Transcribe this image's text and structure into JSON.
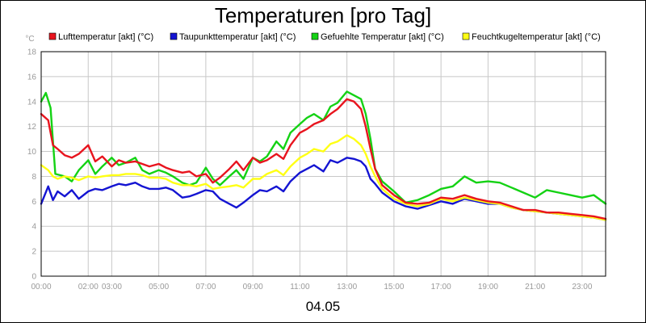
{
  "chart_data": {
    "type": "line",
    "title": "Temperaturen [pro Tag]",
    "ylabel": "°C",
    "xlabel": "04.05",
    "ylim": [
      0,
      18
    ],
    "xlim": [
      0,
      24
    ],
    "grid": true,
    "legend_position": "top",
    "y_ticks": [
      "0",
      "2",
      "4",
      "6",
      "8",
      "10",
      "12",
      "14",
      "16",
      "18"
    ],
    "x_ticks": [
      {
        "x": 0,
        "label": "00:00"
      },
      {
        "x": 2,
        "label": "02:00"
      },
      {
        "x": 3,
        "label": "03:00"
      },
      {
        "x": 5,
        "label": "05:00"
      },
      {
        "x": 7,
        "label": "07:00"
      },
      {
        "x": 9,
        "label": "09:00"
      },
      {
        "x": 11,
        "label": "11:00"
      },
      {
        "x": 13,
        "label": "13:00"
      },
      {
        "x": 15,
        "label": "15:00"
      },
      {
        "x": 17,
        "label": "17:00"
      },
      {
        "x": 19,
        "label": "19:00"
      },
      {
        "x": 21,
        "label": "21:00"
      },
      {
        "x": 23,
        "label": "23:00"
      }
    ],
    "series": [
      {
        "name": "Lufttemperatur [akt] (°C)",
        "color": "#e8141e",
        "x": [
          0,
          0.3,
          0.5,
          0.7,
          1.0,
          1.3,
          1.6,
          2.0,
          2.3,
          2.6,
          3.0,
          3.3,
          3.6,
          4.0,
          4.3,
          4.6,
          5.0,
          5.3,
          5.6,
          6.0,
          6.3,
          6.6,
          7.0,
          7.3,
          7.6,
          8.0,
          8.3,
          8.6,
          9.0,
          9.3,
          9.6,
          10.0,
          10.3,
          10.6,
          11.0,
          11.3,
          11.6,
          12.0,
          12.3,
          12.6,
          13.0,
          13.3,
          13.6,
          13.8,
          14.0,
          14.2,
          14.5,
          15.0,
          15.5,
          16.0,
          16.5,
          17.0,
          17.5,
          18.0,
          18.5,
          19.0,
          19.5,
          20.0,
          20.5,
          21.0,
          21.5,
          22.0,
          22.5,
          23.0,
          23.5,
          24.0
        ],
        "y": [
          13.0,
          12.5,
          10.5,
          10.2,
          9.7,
          9.5,
          9.8,
          10.5,
          9.2,
          9.6,
          8.8,
          9.3,
          9.1,
          9.2,
          9.0,
          8.8,
          9.0,
          8.7,
          8.5,
          8.3,
          8.4,
          8.0,
          8.2,
          7.5,
          7.9,
          8.6,
          9.2,
          8.5,
          9.5,
          9.1,
          9.3,
          9.8,
          9.4,
          10.5,
          11.5,
          11.8,
          12.2,
          12.5,
          13.0,
          13.4,
          14.2,
          14.0,
          13.4,
          12.0,
          10.2,
          8.6,
          7.3,
          6.5,
          5.9,
          5.8,
          5.9,
          6.3,
          6.2,
          6.5,
          6.2,
          6.0,
          5.9,
          5.6,
          5.3,
          5.3,
          5.1,
          5.1,
          5.0,
          4.9,
          4.8,
          4.6
        ]
      },
      {
        "name": "Taupunkttemperatur [akt] (°C)",
        "color": "#1414d2",
        "x": [
          0,
          0.3,
          0.5,
          0.7,
          1.0,
          1.3,
          1.6,
          2.0,
          2.3,
          2.6,
          3.0,
          3.3,
          3.6,
          4.0,
          4.3,
          4.6,
          5.0,
          5.3,
          5.6,
          6.0,
          6.3,
          6.6,
          7.0,
          7.3,
          7.6,
          8.0,
          8.3,
          8.6,
          9.0,
          9.3,
          9.6,
          10.0,
          10.3,
          10.6,
          11.0,
          11.3,
          11.6,
          12.0,
          12.3,
          12.6,
          13.0,
          13.3,
          13.6,
          13.8,
          14.0,
          14.2,
          14.5,
          15.0,
          15.5,
          16.0,
          16.5,
          17.0,
          17.5,
          18.0,
          18.5,
          19.0,
          19.5,
          20.0,
          20.5,
          21.0,
          21.5,
          22.0,
          22.5,
          23.0,
          23.5,
          24.0
        ],
        "y": [
          5.8,
          7.2,
          6.1,
          6.8,
          6.4,
          6.9,
          6.2,
          6.8,
          7.0,
          6.9,
          7.2,
          7.4,
          7.3,
          7.5,
          7.2,
          7.0,
          7.0,
          7.1,
          6.9,
          6.3,
          6.4,
          6.6,
          6.9,
          6.8,
          6.2,
          5.8,
          5.5,
          5.9,
          6.5,
          6.9,
          6.8,
          7.2,
          6.8,
          7.6,
          8.3,
          8.6,
          8.9,
          8.4,
          9.3,
          9.1,
          9.5,
          9.4,
          9.2,
          8.8,
          7.8,
          7.4,
          6.7,
          6.0,
          5.6,
          5.4,
          5.7,
          6.0,
          5.8,
          6.2,
          6.0,
          5.8,
          5.8,
          5.5,
          5.3,
          5.2,
          5.1,
          5.0,
          4.9,
          4.8,
          4.7,
          4.5
        ]
      },
      {
        "name": "Gefuehlte Temperatur [akt] (°C)",
        "color": "#14d214",
        "x": [
          0,
          0.2,
          0.4,
          0.6,
          1.0,
          1.3,
          1.6,
          2.0,
          2.3,
          2.6,
          3.0,
          3.3,
          3.6,
          4.0,
          4.3,
          4.6,
          5.0,
          5.3,
          5.6,
          6.0,
          6.3,
          6.6,
          7.0,
          7.3,
          7.6,
          8.0,
          8.3,
          8.6,
          9.0,
          9.3,
          9.6,
          10.0,
          10.3,
          10.6,
          11.0,
          11.3,
          11.6,
          12.0,
          12.3,
          12.6,
          13.0,
          13.3,
          13.6,
          13.8,
          14.0,
          14.2,
          14.5,
          15.0,
          15.5,
          16.0,
          16.5,
          17.0,
          17.5,
          18.0,
          18.5,
          19.0,
          19.5,
          20.0,
          20.5,
          21.0,
          21.5,
          22.0,
          22.5,
          23.0,
          23.5,
          24.0
        ],
        "y": [
          14.0,
          14.7,
          13.5,
          8.2,
          8.0,
          7.6,
          8.5,
          9.3,
          8.2,
          8.8,
          9.5,
          8.9,
          9.1,
          9.5,
          8.5,
          8.2,
          8.5,
          8.3,
          8.0,
          7.5,
          7.3,
          7.5,
          8.7,
          7.8,
          7.3,
          8.0,
          8.5,
          7.8,
          9.5,
          9.2,
          9.6,
          10.8,
          10.2,
          11.5,
          12.2,
          12.7,
          13.0,
          12.5,
          13.6,
          13.9,
          14.8,
          14.5,
          14.2,
          13.0,
          11.0,
          8.6,
          7.6,
          6.8,
          5.9,
          6.1,
          6.5,
          7.0,
          7.2,
          8.0,
          7.5,
          7.6,
          7.5,
          7.1,
          6.7,
          6.3,
          6.9,
          6.7,
          6.5,
          6.3,
          6.5,
          5.8
        ]
      },
      {
        "name": "Feuchtkugeltemperatur [akt] (°C)",
        "color": "#ffff14",
        "x": [
          0,
          0.3,
          0.5,
          0.7,
          1.0,
          1.3,
          1.6,
          2.0,
          2.3,
          2.6,
          3.0,
          3.3,
          3.6,
          4.0,
          4.3,
          4.6,
          5.0,
          5.3,
          5.6,
          6.0,
          6.3,
          6.6,
          7.0,
          7.3,
          7.6,
          8.0,
          8.3,
          8.6,
          9.0,
          9.3,
          9.6,
          10.0,
          10.3,
          10.6,
          11.0,
          11.3,
          11.6,
          12.0,
          12.3,
          12.6,
          13.0,
          13.3,
          13.6,
          13.8,
          14.0,
          14.2,
          14.5,
          15.0,
          15.5,
          16.0,
          16.5,
          17.0,
          17.5,
          18.0,
          18.5,
          19.0,
          19.5,
          20.0,
          20.5,
          21.0,
          21.5,
          22.0,
          22.5,
          23.0,
          23.5,
          24.0
        ],
        "y": [
          8.9,
          8.5,
          8.0,
          7.8,
          8.0,
          7.9,
          7.7,
          8.0,
          7.9,
          8.0,
          8.1,
          8.1,
          8.2,
          8.2,
          8.1,
          7.9,
          7.9,
          7.8,
          7.5,
          7.3,
          7.3,
          7.2,
          7.4,
          7.0,
          7.1,
          7.2,
          7.3,
          7.1,
          7.8,
          7.8,
          8.2,
          8.5,
          8.1,
          8.8,
          9.5,
          9.8,
          10.2,
          10.0,
          10.6,
          10.8,
          11.3,
          11.0,
          10.5,
          9.8,
          8.8,
          8.0,
          7.0,
          6.2,
          5.8,
          5.6,
          5.8,
          6.2,
          6.0,
          6.3,
          6.1,
          5.9,
          5.8,
          5.5,
          5.3,
          5.2,
          5.1,
          5.0,
          4.9,
          4.8,
          4.7,
          4.5
        ]
      }
    ]
  }
}
